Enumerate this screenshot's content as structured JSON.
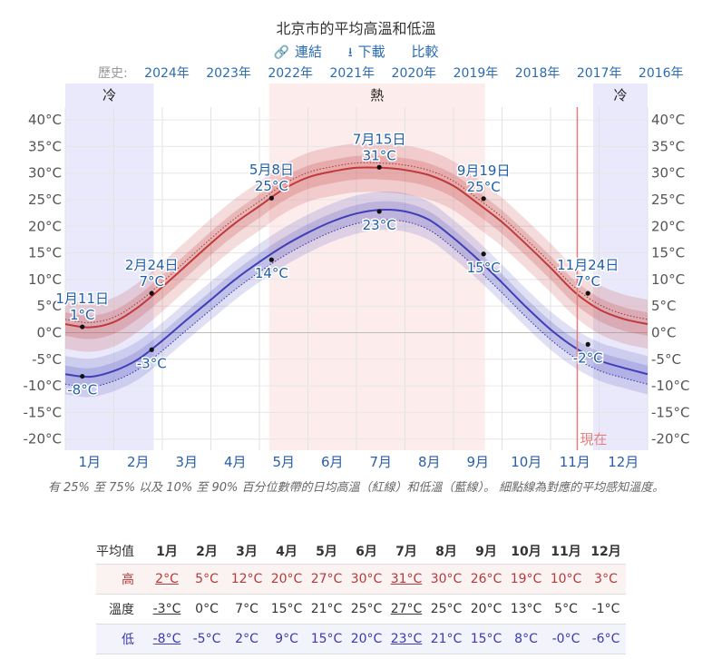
{
  "header": {
    "title": "北京市的平均高溫和低溫",
    "link_label": "連結",
    "download_label": "下載",
    "compare_label": "比較"
  },
  "history": {
    "label": "歷史:",
    "years": [
      "2024年",
      "2023年",
      "2022年",
      "2021年",
      "2020年",
      "2019年",
      "2018年",
      "2017年",
      "2016年"
    ]
  },
  "colors": {
    "high_line": "#c0393b",
    "low_line": "#3f3fb8",
    "label_blue": "#1f5fa8",
    "cold_band": "#e9e9fb",
    "hot_band": "#fdecec",
    "now_line": "#e57f7f"
  },
  "chart_data": {
    "type": "line",
    "months": [
      "1月",
      "2月",
      "3月",
      "4月",
      "5月",
      "6月",
      "7月",
      "8月",
      "9月",
      "10月",
      "11月",
      "12月"
    ],
    "yticks": [
      "40°C",
      "35°C",
      "30°C",
      "25°C",
      "20°C",
      "15°C",
      "10°C",
      "5°C",
      "0°C",
      "-5°C",
      "-10°C",
      "-15°C",
      "-20°C"
    ],
    "ylim": [
      -22,
      42
    ],
    "bands": [
      {
        "label": "冷",
        "from_month": 0.0,
        "to_month": 1.82
      },
      {
        "label": "熱",
        "from_month": 4.2,
        "to_month": 8.65
      },
      {
        "label": "冷",
        "from_month": 10.88,
        "to_month": 12.0
      }
    ],
    "now_label": "現在",
    "now_month": 10.55,
    "series": [
      {
        "name": "高",
        "x": [
          0,
          0.5,
          1.0,
          1.5,
          2.0,
          2.5,
          3.0,
          3.5,
          4.0,
          4.5,
          5.0,
          5.5,
          6.0,
          6.5,
          7.0,
          7.5,
          8.0,
          8.5,
          9.0,
          9.5,
          10.0,
          10.5,
          11.0,
          11.5,
          12.0
        ],
        "values": [
          1.6,
          1.0,
          2.0,
          4.8,
          8.6,
          12.7,
          16.8,
          20.6,
          23.8,
          27.0,
          29.2,
          30.3,
          31.0,
          31.0,
          30.6,
          29.6,
          27.6,
          24.3,
          20.8,
          16.6,
          12.2,
          7.6,
          4.4,
          2.6,
          1.6
        ]
      },
      {
        "name": "低",
        "x": [
          0,
          0.5,
          1.0,
          1.5,
          2.0,
          2.5,
          3.0,
          3.5,
          4.0,
          4.5,
          5.0,
          5.5,
          6.0,
          6.5,
          7.0,
          7.5,
          8.0,
          8.5,
          9.0,
          9.5,
          10.0,
          10.5,
          11.0,
          11.5,
          12.0
        ],
        "values": [
          -7.8,
          -8.3,
          -7.2,
          -5.0,
          -1.5,
          2.4,
          6.2,
          10.0,
          13.3,
          16.3,
          18.8,
          20.9,
          22.4,
          23.1,
          22.8,
          21.2,
          17.8,
          13.8,
          9.4,
          4.8,
          0.6,
          -2.8,
          -5.2,
          -6.6,
          -7.8
        ]
      }
    ],
    "annotations": [
      {
        "date": "1月11日",
        "value": "1°C",
        "month": 0.35,
        "temp": 1.1,
        "series": "high"
      },
      {
        "date": "",
        "value": "-8°C",
        "month": 0.35,
        "temp": -8.2,
        "series": "low"
      },
      {
        "date": "2月24日",
        "value": "7°C",
        "month": 1.78,
        "temp": 7.4,
        "series": "high"
      },
      {
        "date": "",
        "value": "-3°C",
        "month": 1.78,
        "temp": -3.2,
        "series": "low"
      },
      {
        "date": "5月8日",
        "value": "25°C",
        "month": 4.25,
        "temp": 25.3,
        "series": "high"
      },
      {
        "date": "",
        "value": "14°C",
        "month": 4.25,
        "temp": 13.7,
        "series": "low"
      },
      {
        "date": "7月15日",
        "value": "31°C",
        "month": 6.47,
        "temp": 31.1,
        "series": "high"
      },
      {
        "date": "",
        "value": "23°C",
        "month": 6.47,
        "temp": 22.8,
        "series": "low"
      },
      {
        "date": "9月19日",
        "value": "25°C",
        "month": 8.62,
        "temp": 25.2,
        "series": "high"
      },
      {
        "date": "",
        "value": "15°C",
        "month": 8.62,
        "temp": 14.8,
        "series": "low"
      },
      {
        "date": "11月24日",
        "value": "7°C",
        "month": 10.77,
        "temp": 7.4,
        "series": "high"
      },
      {
        "date": "",
        "value": "-2°C",
        "month": 10.77,
        "temp": -2.2,
        "series": "low"
      }
    ],
    "caption": "有 25% 至 75% 以及 10% 至 90% 百分位數帶的日均高溫（紅線）和低溫（藍線）。 細點線為對應的平均感知溫度。"
  },
  "table": {
    "corner": "平均值",
    "months": [
      "1月",
      "2月",
      "3月",
      "4月",
      "5月",
      "6月",
      "7月",
      "8月",
      "9月",
      "10月",
      "11月",
      "12月"
    ],
    "rows": [
      {
        "label": "高",
        "values": [
          "2°C",
          "5°C",
          "12°C",
          "20°C",
          "27°C",
          "30°C",
          "31°C",
          "30°C",
          "26°C",
          "19°C",
          "10°C",
          "3°C"
        ]
      },
      {
        "label": "溫度",
        "values": [
          "-3°C",
          "0°C",
          "7°C",
          "15°C",
          "21°C",
          "25°C",
          "27°C",
          "25°C",
          "20°C",
          "13°C",
          "5°C",
          "-1°C"
        ]
      },
      {
        "label": "低",
        "values": [
          "-8°C",
          "-5°C",
          "2°C",
          "9°C",
          "15°C",
          "20°C",
          "23°C",
          "21°C",
          "15°C",
          "8°C",
          "-0°C",
          "-6°C"
        ]
      }
    ],
    "underlined": [
      [
        0,
        0
      ],
      [
        0,
        6
      ],
      [
        1,
        0
      ],
      [
        1,
        6
      ],
      [
        2,
        0
      ],
      [
        2,
        6
      ]
    ]
  }
}
